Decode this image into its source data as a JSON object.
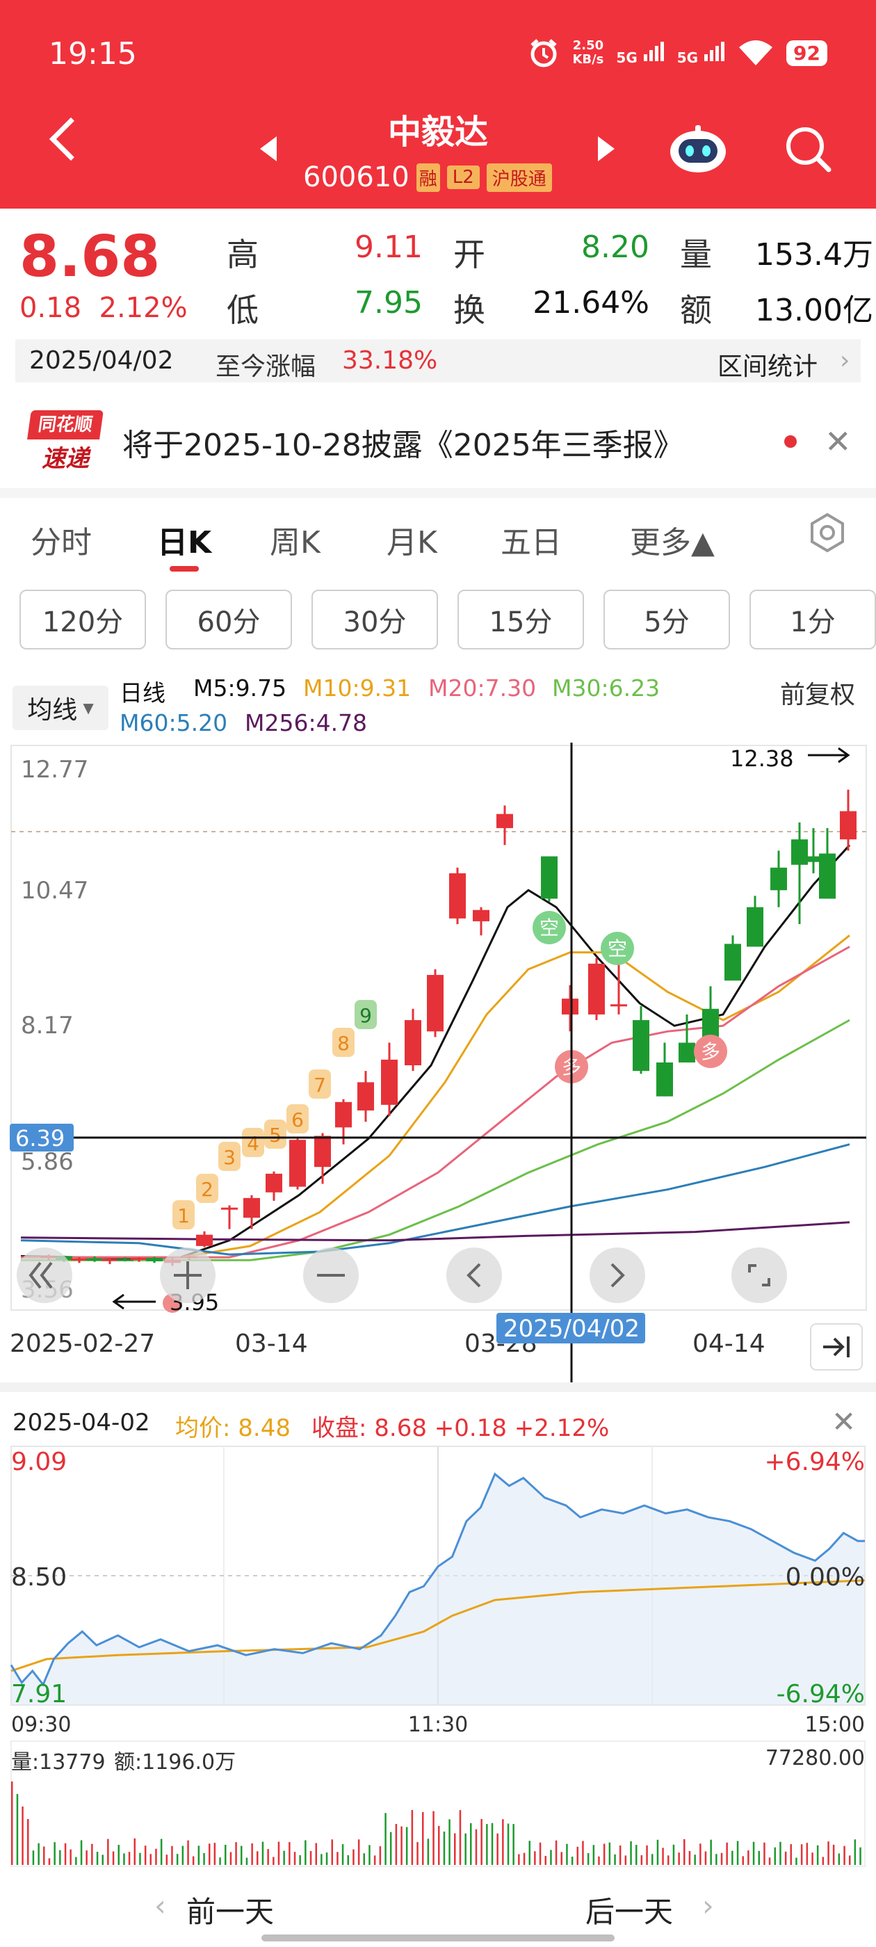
{
  "status": {
    "time": "19:15",
    "netspeed_top": "2.50",
    "netspeed_bottom": "KB/s",
    "signal1": "5G",
    "signal2": "5G",
    "battery": "92"
  },
  "header": {
    "stock_name": "中毅达",
    "stock_code": "600610",
    "tag1": "L2",
    "tag2": "沪股通"
  },
  "quote": {
    "price": "8.68",
    "change": "0.18",
    "change_pct": "2.12%",
    "high_label": "高",
    "high": "9.11",
    "open_label": "开",
    "open": "8.20",
    "volume_label": "量",
    "volume": "153.4万",
    "low_label": "低",
    "low": "7.95",
    "turnover_label": "换",
    "turnover": "21.64%",
    "amount_label": "额",
    "amount": "13.00亿"
  },
  "date_bar": {
    "date": "2025/04/02",
    "label": "至今涨幅",
    "value": "33.18%",
    "stats": "区间统计"
  },
  "news": {
    "logo_top": "同花顺",
    "logo_bottom": "速递",
    "text": "将于2025-10-28披露《2025年三季报》"
  },
  "tabs": [
    "分时",
    "日K",
    "周K",
    "月K",
    "五日",
    "更多▲"
  ],
  "intervals": [
    "120分",
    "60分",
    "30分",
    "15分",
    "5分",
    "1分"
  ],
  "ma_legend": {
    "button": "均线",
    "kind": "日线",
    "adjust": "前复权",
    "m5": "M5:9.75",
    "m10": "M10:9.31",
    "m20": "M20:7.30",
    "m30": "M30:6.23",
    "m60": "M60:5.20",
    "m256": "M256:4.78"
  },
  "kchart": {
    "y_ticks": [
      "12.77",
      "10.47",
      "8.17",
      "5.86",
      "3.56"
    ],
    "crosshair_price": "6.39",
    "max_label": "12.38",
    "min_label": "3.95",
    "dates": [
      "2025-02-27",
      "03-14",
      "03-28",
      "04-14"
    ],
    "crosshair_date": "2025/04/02",
    "signals_buy": [
      "1",
      "2",
      "3",
      "4",
      "5",
      "6",
      "7",
      "8",
      "9"
    ],
    "badge_kong": "空",
    "badge_duo": "多"
  },
  "intraday": {
    "date": "2025-04-02",
    "avg_label": "均价: 8.48",
    "close_label": "收盘: 8.68 +0.18 +2.12%",
    "y_high": "9.09",
    "y_mid": "8.50",
    "y_low": "7.91",
    "pct_high": "+6.94%",
    "pct_mid": "0.00%",
    "pct_low": "-6.94%",
    "t_start": "09:30",
    "t_mid": "11:30",
    "t_end": "15:00",
    "vol_label": "量:13779",
    "amt_label": "额:1196.0万",
    "vol_max": "77280.00"
  },
  "bottom_nav": {
    "prev": "前一天",
    "next": "后一天"
  },
  "colors": {
    "up": "#e53238",
    "down": "#1d9a2f",
    "header": "#f0323c",
    "ma5": "#111111",
    "ma10": "#e8a317",
    "ma20": "#e8647a",
    "ma30": "#6cbf4a",
    "ma60": "#2c7fb8",
    "ma256": "#5b1a5e"
  }
}
